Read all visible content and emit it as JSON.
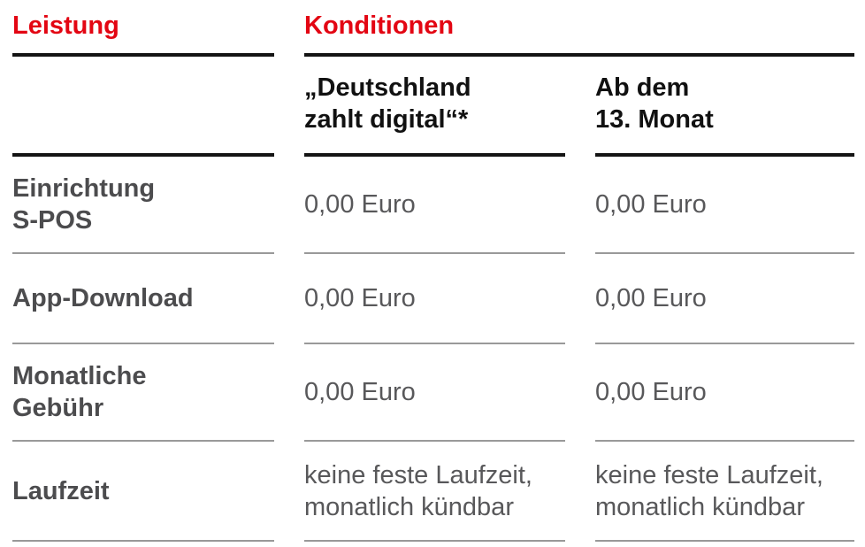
{
  "table": {
    "header": {
      "leistung": "Leistung",
      "konditionen": "Konditionen"
    },
    "subheader": {
      "deutschland_zahlt_digital": "„Deutschland\nzahlt digital“*",
      "ab_dem_13_monat": "Ab dem\n13. Monat"
    },
    "rows": [
      {
        "label": "Einrichtung\nS-POS",
        "deutschland_zahlt_digital": "0,00 Euro",
        "ab_dem_13_monat": "0,00 Euro"
      },
      {
        "label": "App-Download",
        "deutschland_zahlt_digital": "0,00 Euro",
        "ab_dem_13_monat": "0,00 Euro"
      },
      {
        "label": "Monatliche\nGebühr",
        "deutschland_zahlt_digital": "0,00 Euro",
        "ab_dem_13_monat": "0,00 Euro"
      },
      {
        "label": "Laufzeit",
        "deutschland_zahlt_digital": "keine feste Laufzeit,\nmonatlich kündbar",
        "ab_dem_13_monat": "keine feste Laufzeit,\nmonatlich kündbar"
      }
    ]
  },
  "colors": {
    "accent_red": "#e30613",
    "heading_black": "#111111",
    "label_gray": "#4c4c4e",
    "value_gray": "#58585a",
    "thick_rule": "#141414",
    "divider_gray": "#999999"
  }
}
